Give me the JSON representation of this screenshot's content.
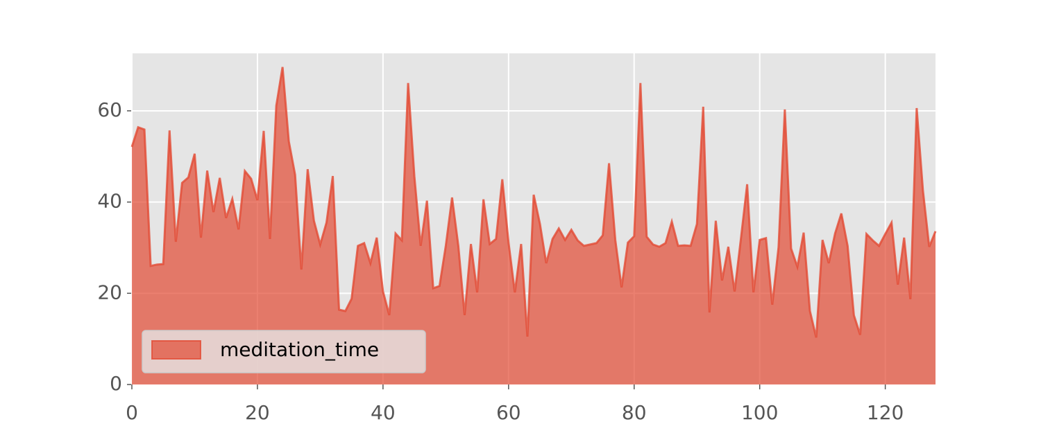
{
  "chart_data": {
    "type": "area",
    "x": [
      0,
      1,
      2,
      3,
      4,
      5,
      6,
      7,
      8,
      9,
      10,
      11,
      12,
      13,
      14,
      15,
      16,
      17,
      18,
      19,
      20,
      21,
      22,
      23,
      24,
      25,
      26,
      27,
      28,
      29,
      30,
      31,
      32,
      33,
      34,
      35,
      36,
      37,
      38,
      39,
      40,
      41,
      42,
      43,
      44,
      45,
      46,
      47,
      48,
      49,
      50,
      51,
      52,
      53,
      54,
      55,
      56,
      57,
      58,
      59,
      60,
      61,
      62,
      63,
      64,
      65,
      66,
      67,
      68,
      69,
      70,
      71,
      72,
      73,
      74,
      75,
      76,
      77,
      78,
      79,
      80,
      81,
      82,
      83,
      84,
      85,
      86,
      87,
      88,
      89,
      90,
      91,
      92,
      93,
      94,
      95,
      96,
      97,
      98,
      99,
      100,
      101,
      102,
      103,
      104,
      105,
      106,
      107,
      108,
      109,
      110,
      111,
      112,
      113,
      114,
      115,
      116,
      117,
      118,
      119,
      120,
      121,
      122,
      123,
      124,
      125,
      126,
      127,
      128
    ],
    "series": [
      {
        "name": "meditation_time",
        "color": "#E24A33",
        "values": [
          52.1,
          56.4,
          55.9,
          26.0,
          26.3,
          26.4,
          55.7,
          31.3,
          44.2,
          45.4,
          50.6,
          32.2,
          46.9,
          37.8,
          45.3,
          36.5,
          40.7,
          34.0,
          46.8,
          45.1,
          40.4,
          55.6,
          31.9,
          61.1,
          69.6,
          53.3,
          46.0,
          25.2,
          47.2,
          35.9,
          30.7,
          35.5,
          45.7,
          16.4,
          16.1,
          18.8,
          30.4,
          31.0,
          26.6,
          32.2,
          20.4,
          15.2,
          33.1,
          31.6,
          66.1,
          45.6,
          30.4,
          40.3,
          21.1,
          21.6,
          30.4,
          41.0,
          30.4,
          15.2,
          30.8,
          20.2,
          40.6,
          30.8,
          31.9,
          45.0,
          31.1,
          20.2,
          30.8,
          10.5,
          41.6,
          35.2,
          26.6,
          31.9,
          34.2,
          31.7,
          33.9,
          31.6,
          30.4,
          30.7,
          31.0,
          32.7,
          48.5,
          31.7,
          21.3,
          31.1,
          32.5,
          66.1,
          32.4,
          30.7,
          30.2,
          31.0,
          35.7,
          30.4,
          30.5,
          30.4,
          35.2,
          60.9,
          15.8,
          35.9,
          22.8,
          30.2,
          20.4,
          31.9,
          43.9,
          20.2,
          31.7,
          32.1,
          17.5,
          30.1,
          60.3,
          29.8,
          25.8,
          33.3,
          16.1,
          10.3,
          31.7,
          26.6,
          33.1,
          37.5,
          30.4,
          15.2,
          10.9,
          33.0,
          31.6,
          30.4,
          33.0,
          35.5,
          21.9,
          32.2,
          18.7,
          60.6,
          42.5,
          30.2,
          33.6
        ]
      }
    ],
    "xlim": [
      0,
      128
    ],
    "xticks": [
      0,
      20,
      40,
      60,
      80,
      100,
      120
    ],
    "ylim": [
      0,
      72.6
    ],
    "yticks": [
      0,
      20,
      40,
      60
    ],
    "grid": true,
    "legend": "lower left"
  }
}
